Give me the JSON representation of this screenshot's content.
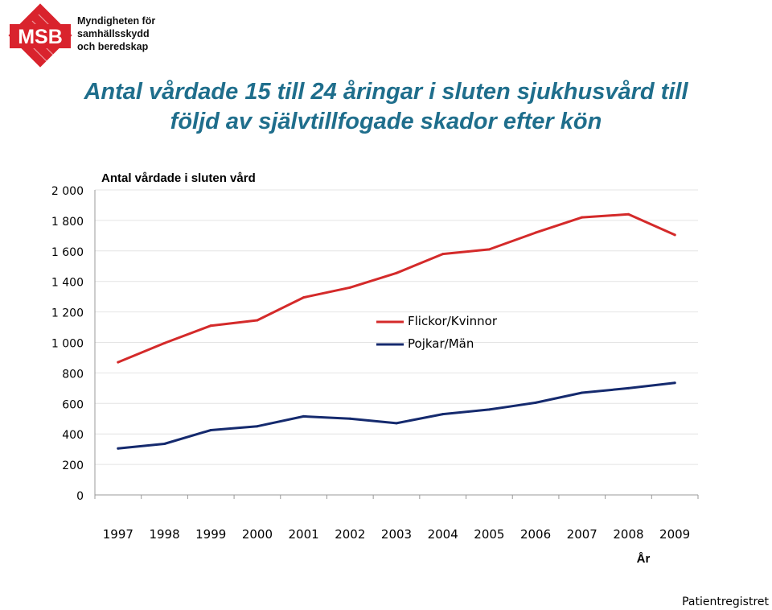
{
  "header": {
    "logo_text": "MSB",
    "org_lines": [
      "Myndigheten för",
      "samhällsskydd",
      "och beredskap"
    ]
  },
  "title_lines": [
    "Antal vårdade 15 till 24 åringar i sluten sjukhusvård till",
    "följd av självtillfogade skador efter kön"
  ],
  "source": "Patientregistret",
  "colors": {
    "girls": "#d42a2a",
    "boys": "#152a6e",
    "title": "#1f6e8c",
    "brand": "#d9232d"
  },
  "chart_data": {
    "type": "line",
    "title": "Antal vårdade i sluten vård",
    "xlabel": "År",
    "ylabel": "",
    "categories": [
      "1997",
      "1998",
      "1999",
      "2000",
      "2001",
      "2002",
      "2003",
      "2004",
      "2005",
      "2006",
      "2007",
      "2008",
      "2009"
    ],
    "ylim": [
      0,
      2000
    ],
    "y_ticks": [
      "0",
      "200",
      "400",
      "600",
      "800",
      "1 000",
      "1 200",
      "1 400",
      "1 600",
      "1 800",
      "2 000"
    ],
    "grid": true,
    "legend": "center",
    "series": [
      {
        "name": "Flickor/Kvinnor",
        "color": "#d42a2a",
        "values": [
          870,
          995,
          1110,
          1145,
          1295,
          1360,
          1455,
          1580,
          1610,
          1720,
          1820,
          1840,
          1705
        ]
      },
      {
        "name": "Pojkar/Män",
        "color": "#152a6e",
        "values": [
          305,
          335,
          425,
          450,
          515,
          500,
          470,
          530,
          560,
          605,
          670,
          700,
          735
        ]
      }
    ]
  }
}
